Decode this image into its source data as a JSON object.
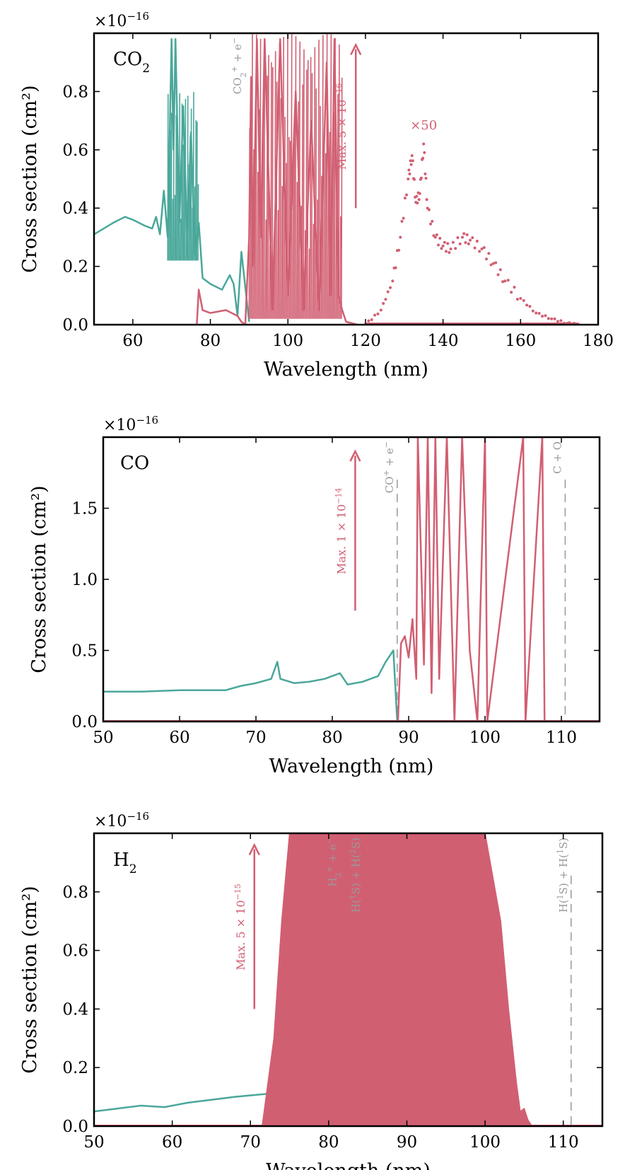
{
  "figure": {
    "xlabel": "Wavelength (nm)",
    "ylabel": "Cross section (cm²)",
    "offset_base": "×10",
    "offset_exp": "−16"
  },
  "colors": {
    "ionization": "#4aa79a",
    "dissociation": "#d15f72",
    "threshold": "#999999"
  },
  "chart_data": [
    {
      "type": "line",
      "species_base": "CO",
      "species_sub": "2",
      "xlim": [
        50,
        180
      ],
      "ylim": [
        0,
        1.0
      ],
      "xticks": [
        60,
        80,
        100,
        120,
        140,
        160,
        180
      ],
      "yticks": [
        0.0,
        0.2,
        0.4,
        0.6,
        0.8
      ],
      "ylog_scale": "×10^-16",
      "series": [
        {
          "role": "ionization",
          "x": [
            50,
            55,
            58,
            60,
            63,
            65,
            66,
            67,
            68,
            69,
            70,
            70.5,
            71,
            72,
            73,
            74,
            75,
            76,
            77,
            78,
            80,
            83,
            85,
            86,
            87,
            88,
            89,
            90
          ],
          "y": [
            0.31,
            0.35,
            0.37,
            0.36,
            0.34,
            0.33,
            0.37,
            0.31,
            0.46,
            0.3,
            0.98,
            0.6,
            0.98,
            0.35,
            0.75,
            0.3,
            0.66,
            0.24,
            0.35,
            0.16,
            0.14,
            0.12,
            0.17,
            0.14,
            0.03,
            0.25,
            0.13,
            0.01
          ]
        },
        {
          "role": "dissociation",
          "x": [
            76.5,
            77,
            78,
            80,
            84,
            87,
            88,
            89,
            90,
            90.5,
            91,
            92,
            93,
            94,
            96,
            98,
            100,
            102,
            104,
            106,
            108,
            110,
            111,
            112,
            113,
            114,
            115,
            118
          ],
          "y": [
            0.0,
            0.12,
            0.05,
            0.04,
            0.05,
            0.03,
            0.01,
            0.0,
            0.3,
            0.85,
            0.2,
            0.98,
            0.3,
            0.98,
            0.05,
            0.98,
            0.1,
            0.8,
            0.05,
            0.7,
            0.05,
            0.9,
            0.1,
            0.98,
            0.1,
            0.05,
            0.01,
            0.0
          ]
        },
        {
          "role": "dissociation-x50",
          "x": [
            120,
            124,
            127,
            129,
            131,
            132,
            133,
            134,
            135,
            136,
            138,
            140,
            142,
            145,
            147,
            150,
            153,
            156,
            160,
            164,
            168,
            172,
            175
          ],
          "y": [
            0.0,
            0.05,
            0.15,
            0.3,
            0.5,
            0.58,
            0.42,
            0.45,
            0.62,
            0.4,
            0.3,
            0.27,
            0.26,
            0.3,
            0.29,
            0.26,
            0.21,
            0.15,
            0.09,
            0.04,
            0.02,
            0.005,
            0.0
          ]
        }
      ],
      "annotations": {
        "max": {
          "label": "Max. 5 × 10",
          "exp": "−16",
          "x": 117.5,
          "y_from": 0.4,
          "y_to": 0.96
        },
        "scale": {
          "label": "×50",
          "x": 135,
          "y": 0.67
        },
        "thresholds": [
          {
            "x": 89,
            "label_base": "CO",
            "label_sub": "2",
            "label_sup": "+",
            "label_tail": " + e",
            "label_tail_sup": "−",
            "line": false
          }
        ]
      }
    },
    {
      "type": "line",
      "species_base": "CO",
      "species_sub": "",
      "xlim": [
        50,
        115
      ],
      "ylim": [
        0,
        2.0
      ],
      "xticks": [
        50,
        60,
        70,
        80,
        90,
        100,
        110
      ],
      "yticks": [
        0.0,
        0.5,
        1.0,
        1.5
      ],
      "series": [
        {
          "role": "ionization",
          "x": [
            50,
            55,
            60,
            64,
            66,
            68,
            70,
            72,
            72.8,
            73.2,
            75,
            77,
            79,
            81,
            82,
            84,
            86,
            87,
            88,
            88.5
          ],
          "y": [
            0.21,
            0.21,
            0.22,
            0.22,
            0.22,
            0.25,
            0.27,
            0.3,
            0.42,
            0.3,
            0.27,
            0.28,
            0.3,
            0.34,
            0.26,
            0.28,
            0.32,
            0.42,
            0.5,
            0.0
          ]
        },
        {
          "role": "dissociation",
          "x": [
            88.6,
            89,
            89.5,
            90,
            90.5,
            91,
            91.2,
            92,
            92.5,
            93,
            93.5,
            94,
            95,
            96,
            97,
            98,
            99,
            100,
            100.3,
            105,
            105.3,
            107.5,
            107.8,
            115
          ],
          "y": [
            0.0,
            0.55,
            0.6,
            0.45,
            0.72,
            0.3,
            2.0,
            0.4,
            2.0,
            0.2,
            2.0,
            0.3,
            2.0,
            0.0,
            2.0,
            0.5,
            0.0,
            2.0,
            0.0,
            2.0,
            0.0,
            2.0,
            0.0,
            0.0
          ]
        }
      ],
      "annotations": {
        "max": {
          "label": "Max. 1 × 10",
          "exp": "−14",
          "x": 83,
          "y_from": 0.78,
          "y_to": 1.9
        },
        "thresholds": [
          {
            "x": 88.5,
            "label_base": "CO",
            "label_sub": "",
            "label_sup": "+",
            "label_tail": " + e",
            "label_tail_sup": "−",
            "line": true
          },
          {
            "x": 110.5,
            "label_base": "C + O",
            "label_sub": "",
            "label_sup": "",
            "label_tail": "",
            "label_tail_sup": "",
            "line": true
          }
        ]
      }
    },
    {
      "type": "line",
      "species_base": "H",
      "species_sub": "2",
      "xlim": [
        50,
        115
      ],
      "ylim": [
        0,
        1.0
      ],
      "xticks": [
        50,
        60,
        70,
        80,
        90,
        100,
        110
      ],
      "yticks": [
        0.0,
        0.2,
        0.4,
        0.6,
        0.8
      ],
      "series": [
        {
          "role": "ionization",
          "x": [
            50,
            53,
            56,
            59,
            62,
            65,
            68,
            70,
            72,
            73,
            74,
            75,
            77,
            79,
            80.5
          ],
          "y": [
            0.05,
            0.06,
            0.07,
            0.065,
            0.08,
            0.09,
            0.1,
            0.105,
            0.11,
            0.112,
            0.11,
            0.1,
            0.07,
            0.03,
            0.0
          ]
        },
        {
          "role": "dissociation-band",
          "x": [
            71.5,
            72,
            73,
            74,
            75,
            100,
            102,
            103,
            104,
            104.5,
            105,
            105.5,
            106
          ],
          "y": [
            0.0,
            0.1,
            0.3,
            0.7,
            1.0,
            1.0,
            0.7,
            0.4,
            0.15,
            0.05,
            0.06,
            0.02,
            0.0
          ]
        }
      ],
      "annotations": {
        "max": {
          "label": "Max. 5 × 10",
          "exp": "−15",
          "x": 70.5,
          "y_from": 0.4,
          "y_to": 0.96
        },
        "thresholds": [
          {
            "x": 81.5,
            "label_base": "H",
            "label_sub": "2",
            "label_sup": "+",
            "label_tail": " + e",
            "label_tail_sup": "−",
            "line": true
          },
          {
            "x": 84.5,
            "label_base": "H(",
            "label_sub": "",
            "label_sup": "1",
            "label_tail": "S) + H(",
            "label_tail_sup": "2",
            "label_tail2": "S)",
            "line": true
          },
          {
            "x": 111,
            "label_base": "H(",
            "label_sub": "",
            "label_sup": "1",
            "label_tail": "S) + H(",
            "label_tail_sup": "1",
            "label_tail2": "S)",
            "line": true
          }
        ]
      }
    }
  ]
}
